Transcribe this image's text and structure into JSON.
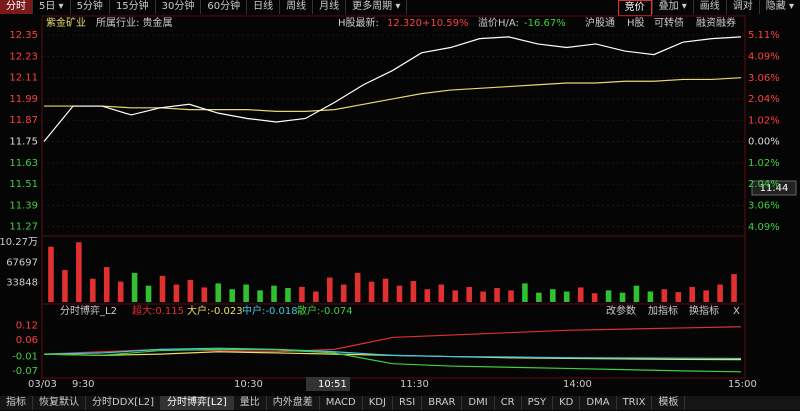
{
  "toolbar": {
    "left": [
      "分时",
      "5日 ▾",
      "5分钟",
      "15分钟",
      "30分钟",
      "60分钟",
      "日线",
      "周线",
      "月线",
      "更多周期 ▾"
    ],
    "left_active": 0,
    "right": [
      "竞价",
      "叠加 ▾",
      "画线",
      "调对",
      "隐藏 ▾"
    ],
    "right_active": 0
  },
  "header": {
    "name": "紫金矿业",
    "industry": "所属行业: 贵金属",
    "h_label": "H股最新:",
    "h_price": "12.320",
    "h_change": "+10.59%",
    "premium_label": "溢价H/A:",
    "premium": "-16.67%",
    "tags": [
      "沪股通",
      "H股",
      "可转债",
      "融资融券"
    ]
  },
  "price_chart": {
    "price": [
      11.75,
      11.95,
      11.95,
      11.9,
      11.94,
      11.96,
      11.91,
      11.88,
      11.86,
      11.88,
      11.97,
      12.07,
      12.15,
      12.25,
      12.28,
      12.33,
      12.34,
      12.3,
      12.28,
      12.3,
      12.26,
      12.24,
      12.31,
      12.33,
      12.34
    ],
    "average": [
      11.95,
      11.95,
      11.95,
      11.94,
      11.94,
      11.93,
      11.93,
      11.93,
      11.92,
      11.92,
      11.93,
      11.96,
      11.99,
      12.02,
      12.04,
      12.05,
      12.06,
      12.07,
      12.08,
      12.08,
      12.09,
      12.09,
      12.1,
      12.1,
      12.11
    ],
    "price_color": "#ffffff",
    "average_color": "#e8d870",
    "ylim": [
      11.24,
      12.39
    ],
    "yticks": [
      12.35,
      12.23,
      12.11,
      11.99,
      11.87,
      11.75,
      11.63,
      11.51,
      11.39,
      11.27
    ],
    "pctlim": [
      -4.34,
      5.45
    ],
    "pctticks": [
      {
        "value": 5.11,
        "label": "5.11%"
      },
      {
        "value": 4.09,
        "label": "4.09%"
      },
      {
        "value": 3.06,
        "label": "3.06%"
      },
      {
        "value": 2.04,
        "label": "2.04%"
      },
      {
        "value": 1.02,
        "label": "1.02%"
      },
      {
        "value": 0,
        "label": "0.00%"
      },
      {
        "value": -1.02,
        "label": "1.02%"
      },
      {
        "value": -2.04,
        "label": "2.04%"
      },
      {
        "value": -3.06,
        "label": "3.06%"
      },
      {
        "value": -4.09,
        "label": "4.09%"
      }
    ],
    "cursor_label": "11.44"
  },
  "volume_chart": {
    "values": [
      95000,
      55000,
      102700,
      40000,
      60000,
      35000,
      50000,
      28000,
      45000,
      30000,
      38000,
      25000,
      32000,
      22000,
      30000,
      20000,
      28000,
      24000,
      26000,
      18000,
      42000,
      30000,
      50000,
      35000,
      40000,
      28000,
      36000,
      22000,
      30000,
      20000,
      26000,
      18000,
      24000,
      20000,
      32000,
      16000,
      22000,
      18000,
      25000,
      15000,
      20000,
      16000,
      28000,
      18000,
      22000,
      17000,
      26000,
      20000,
      30000,
      48000
    ],
    "ylim": [
      0,
      110000
    ],
    "yticks": [
      {
        "value": 102700,
        "label": "10.27万"
      },
      67697,
      33848
    ]
  },
  "indicator": {
    "title": "分时博弈_L2",
    "series": [
      {
        "name": "超大:0.115",
        "color": "#e03030",
        "values": [
          0,
          0.01,
          0.02,
          0.015,
          0.01,
          0.02,
          0.07,
          0.08,
          0.09,
          0.1,
          0.105,
          0.11,
          0.115
        ]
      },
      {
        "name": "大户:-0.023",
        "color": "#e8e060",
        "values": [
          0,
          -0.005,
          0,
          0.01,
          0.005,
          0,
          -0.005,
          -0.01,
          -0.015,
          -0.018,
          -0.02,
          -0.022,
          -0.023
        ]
      },
      {
        "name": "中户:-0.018",
        "color": "#40c8e0",
        "values": [
          0,
          0.005,
          0.02,
          0.025,
          0.02,
          0.01,
          -0.005,
          -0.01,
          -0.012,
          -0.015,
          -0.016,
          -0.017,
          -0.018
        ]
      },
      {
        "name": "散户:-0.074",
        "color": "#40d040",
        "values": [
          0,
          -0.005,
          0.015,
          0.02,
          0.018,
          0.005,
          -0.04,
          -0.05,
          -0.055,
          -0.06,
          -0.065,
          -0.07,
          -0.074
        ]
      }
    ],
    "buttons": [
      "改参数",
      "加指标",
      "换指标",
      "X"
    ],
    "ylim": [
      -0.1,
      0.16
    ],
    "yticks": [
      0.12,
      0.06,
      -0.01,
      -0.07
    ]
  },
  "time_axis": [
    "03/03",
    "9:30",
    "10:30",
    "10:51",
    "11:30",
    "14:00",
    "15:00"
  ],
  "bottom_tabs": [
    "指标",
    "恢复默认",
    "分时DDX[L2]",
    "分时博弈[L2]",
    "量比",
    "内外盘差",
    "MACD",
    "KDJ",
    "RSI",
    "BRAR",
    "DMI",
    "CR",
    "PSY",
    "KD",
    "DMA",
    "TRIX",
    "模板"
  ],
  "bottom_active": 3
}
